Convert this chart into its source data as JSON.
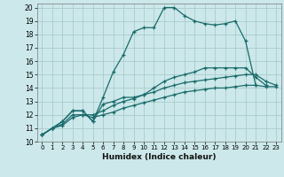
{
  "xlabel": "Humidex (Indice chaleur)",
  "bg_color": "#cce8ea",
  "grid_color": "#aacccc",
  "line_color": "#1a6b6b",
  "xlim": [
    -0.5,
    23.5
  ],
  "ylim": [
    10,
    20.3
  ],
  "xticks": [
    0,
    1,
    2,
    3,
    4,
    5,
    6,
    7,
    8,
    9,
    10,
    11,
    12,
    13,
    14,
    15,
    16,
    17,
    18,
    19,
    20,
    21,
    22,
    23
  ],
  "yticks": [
    10,
    11,
    12,
    13,
    14,
    15,
    16,
    17,
    18,
    19,
    20
  ],
  "series": [
    [
      10.5,
      11.0,
      11.5,
      12.3,
      12.3,
      11.5,
      13.3,
      15.2,
      16.5,
      18.2,
      18.5,
      18.5,
      20.0,
      20.0,
      19.4,
      19.0,
      18.8,
      18.7,
      18.8,
      19.0,
      17.5,
      14.2,
      null,
      null
    ],
    [
      10.5,
      11.0,
      11.5,
      12.3,
      12.3,
      11.5,
      12.8,
      13.0,
      13.3,
      13.3,
      13.5,
      14.0,
      14.5,
      14.8,
      15.0,
      15.2,
      15.5,
      15.5,
      15.5,
      15.5,
      15.5,
      14.8,
      14.2,
      null
    ],
    [
      10.5,
      11.0,
      11.3,
      12.0,
      12.0,
      12.0,
      12.3,
      12.7,
      13.0,
      13.2,
      13.5,
      13.7,
      14.0,
      14.2,
      14.4,
      14.5,
      14.6,
      14.7,
      14.8,
      14.9,
      15.0,
      15.0,
      14.5,
      14.2
    ],
    [
      10.5,
      11.0,
      11.2,
      11.8,
      12.0,
      11.8,
      12.0,
      12.2,
      12.5,
      12.7,
      12.9,
      13.1,
      13.3,
      13.5,
      13.7,
      13.8,
      13.9,
      14.0,
      14.0,
      14.1,
      14.2,
      14.2,
      14.1,
      14.1
    ]
  ]
}
